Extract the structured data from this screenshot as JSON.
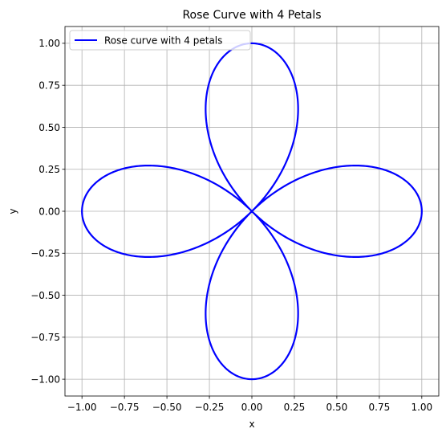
{
  "chart_data": {
    "type": "line",
    "title": "Rose Curve with 4 Petals",
    "xlabel": "x",
    "ylabel": "y",
    "xlim": [
      -1.1,
      1.1
    ],
    "ylim": [
      -1.1,
      1.1
    ],
    "xticks": [
      -1.0,
      -0.75,
      -0.5,
      -0.25,
      0.0,
      0.25,
      0.5,
      0.75,
      1.0
    ],
    "yticks": [
      -1.0,
      -0.75,
      -0.5,
      -0.25,
      0.0,
      0.25,
      0.5,
      0.75,
      1.0
    ],
    "xtick_labels": [
      "−1.00",
      "−0.75",
      "−0.50",
      "−0.25",
      "0.00",
      "0.25",
      "0.50",
      "0.75",
      "1.00"
    ],
    "ytick_labels": [
      "−1.00",
      "−0.75",
      "−0.50",
      "−0.25",
      "0.00",
      "0.25",
      "0.50",
      "0.75",
      "1.00"
    ],
    "grid": true,
    "legend_placement": "upper-left",
    "series": [
      {
        "name": "Rose curve with 4 petals",
        "color": "#0000ff",
        "equation": "r = cos(2θ)",
        "theta_range": [
          0,
          6.283185307179586
        ],
        "sample_count": 1000
      }
    ]
  }
}
